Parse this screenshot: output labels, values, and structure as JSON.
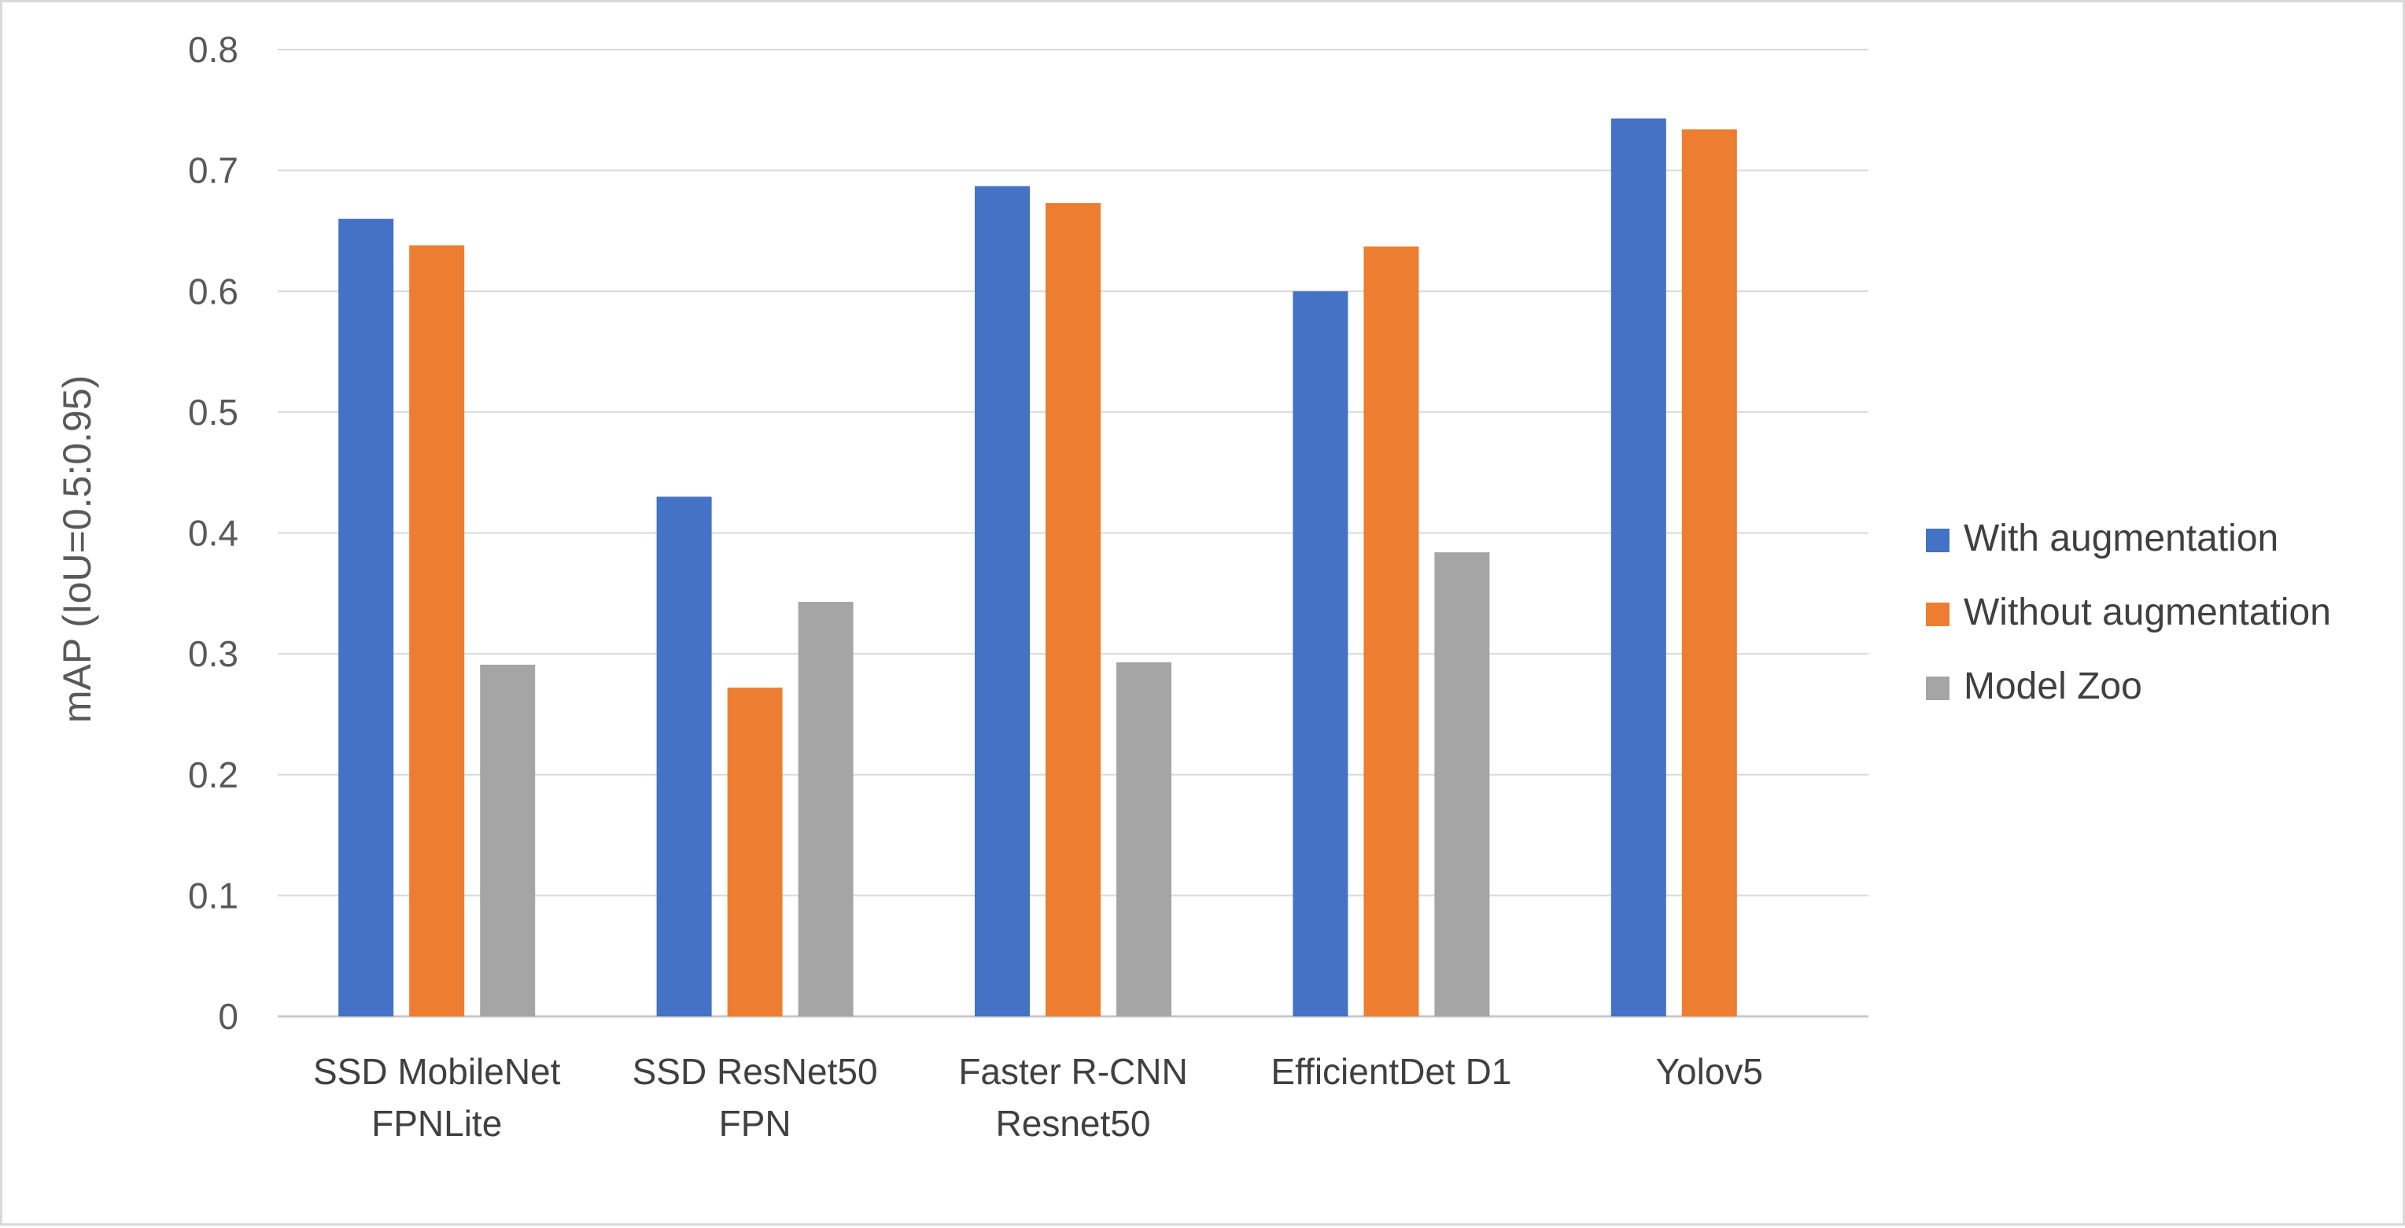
{
  "chart_data": {
    "type": "bar",
    "title": "",
    "xlabel": "",
    "ylabel": "mAP (IoU=0.5:0.95)",
    "ylim": [
      0,
      0.8
    ],
    "yticks": [
      "0",
      "0.1",
      "0.2",
      "0.3",
      "0.4",
      "0.5",
      "0.6",
      "0.7",
      "0.8"
    ],
    "categories": [
      [
        "SSD MobileNet",
        "FPNLite"
      ],
      [
        "SSD ResNet50",
        "FPN"
      ],
      [
        "Faster R-CNN",
        "Resnet50"
      ],
      [
        "EfficientDet D1"
      ],
      [
        "Yolov5"
      ]
    ],
    "series": [
      {
        "name": "With augmentation",
        "color": "#4472C4",
        "values": [
          0.66,
          0.43,
          0.687,
          0.6,
          0.743
        ]
      },
      {
        "name": "Without augmentation",
        "color": "#ED7D31",
        "values": [
          0.638,
          0.272,
          0.673,
          0.637,
          0.734
        ]
      },
      {
        "name": "Model Zoo",
        "color": "#A5A5A5",
        "values": [
          0.291,
          0.343,
          0.293,
          0.384,
          null
        ]
      }
    ],
    "grid": true,
    "legend_position": "right"
  }
}
